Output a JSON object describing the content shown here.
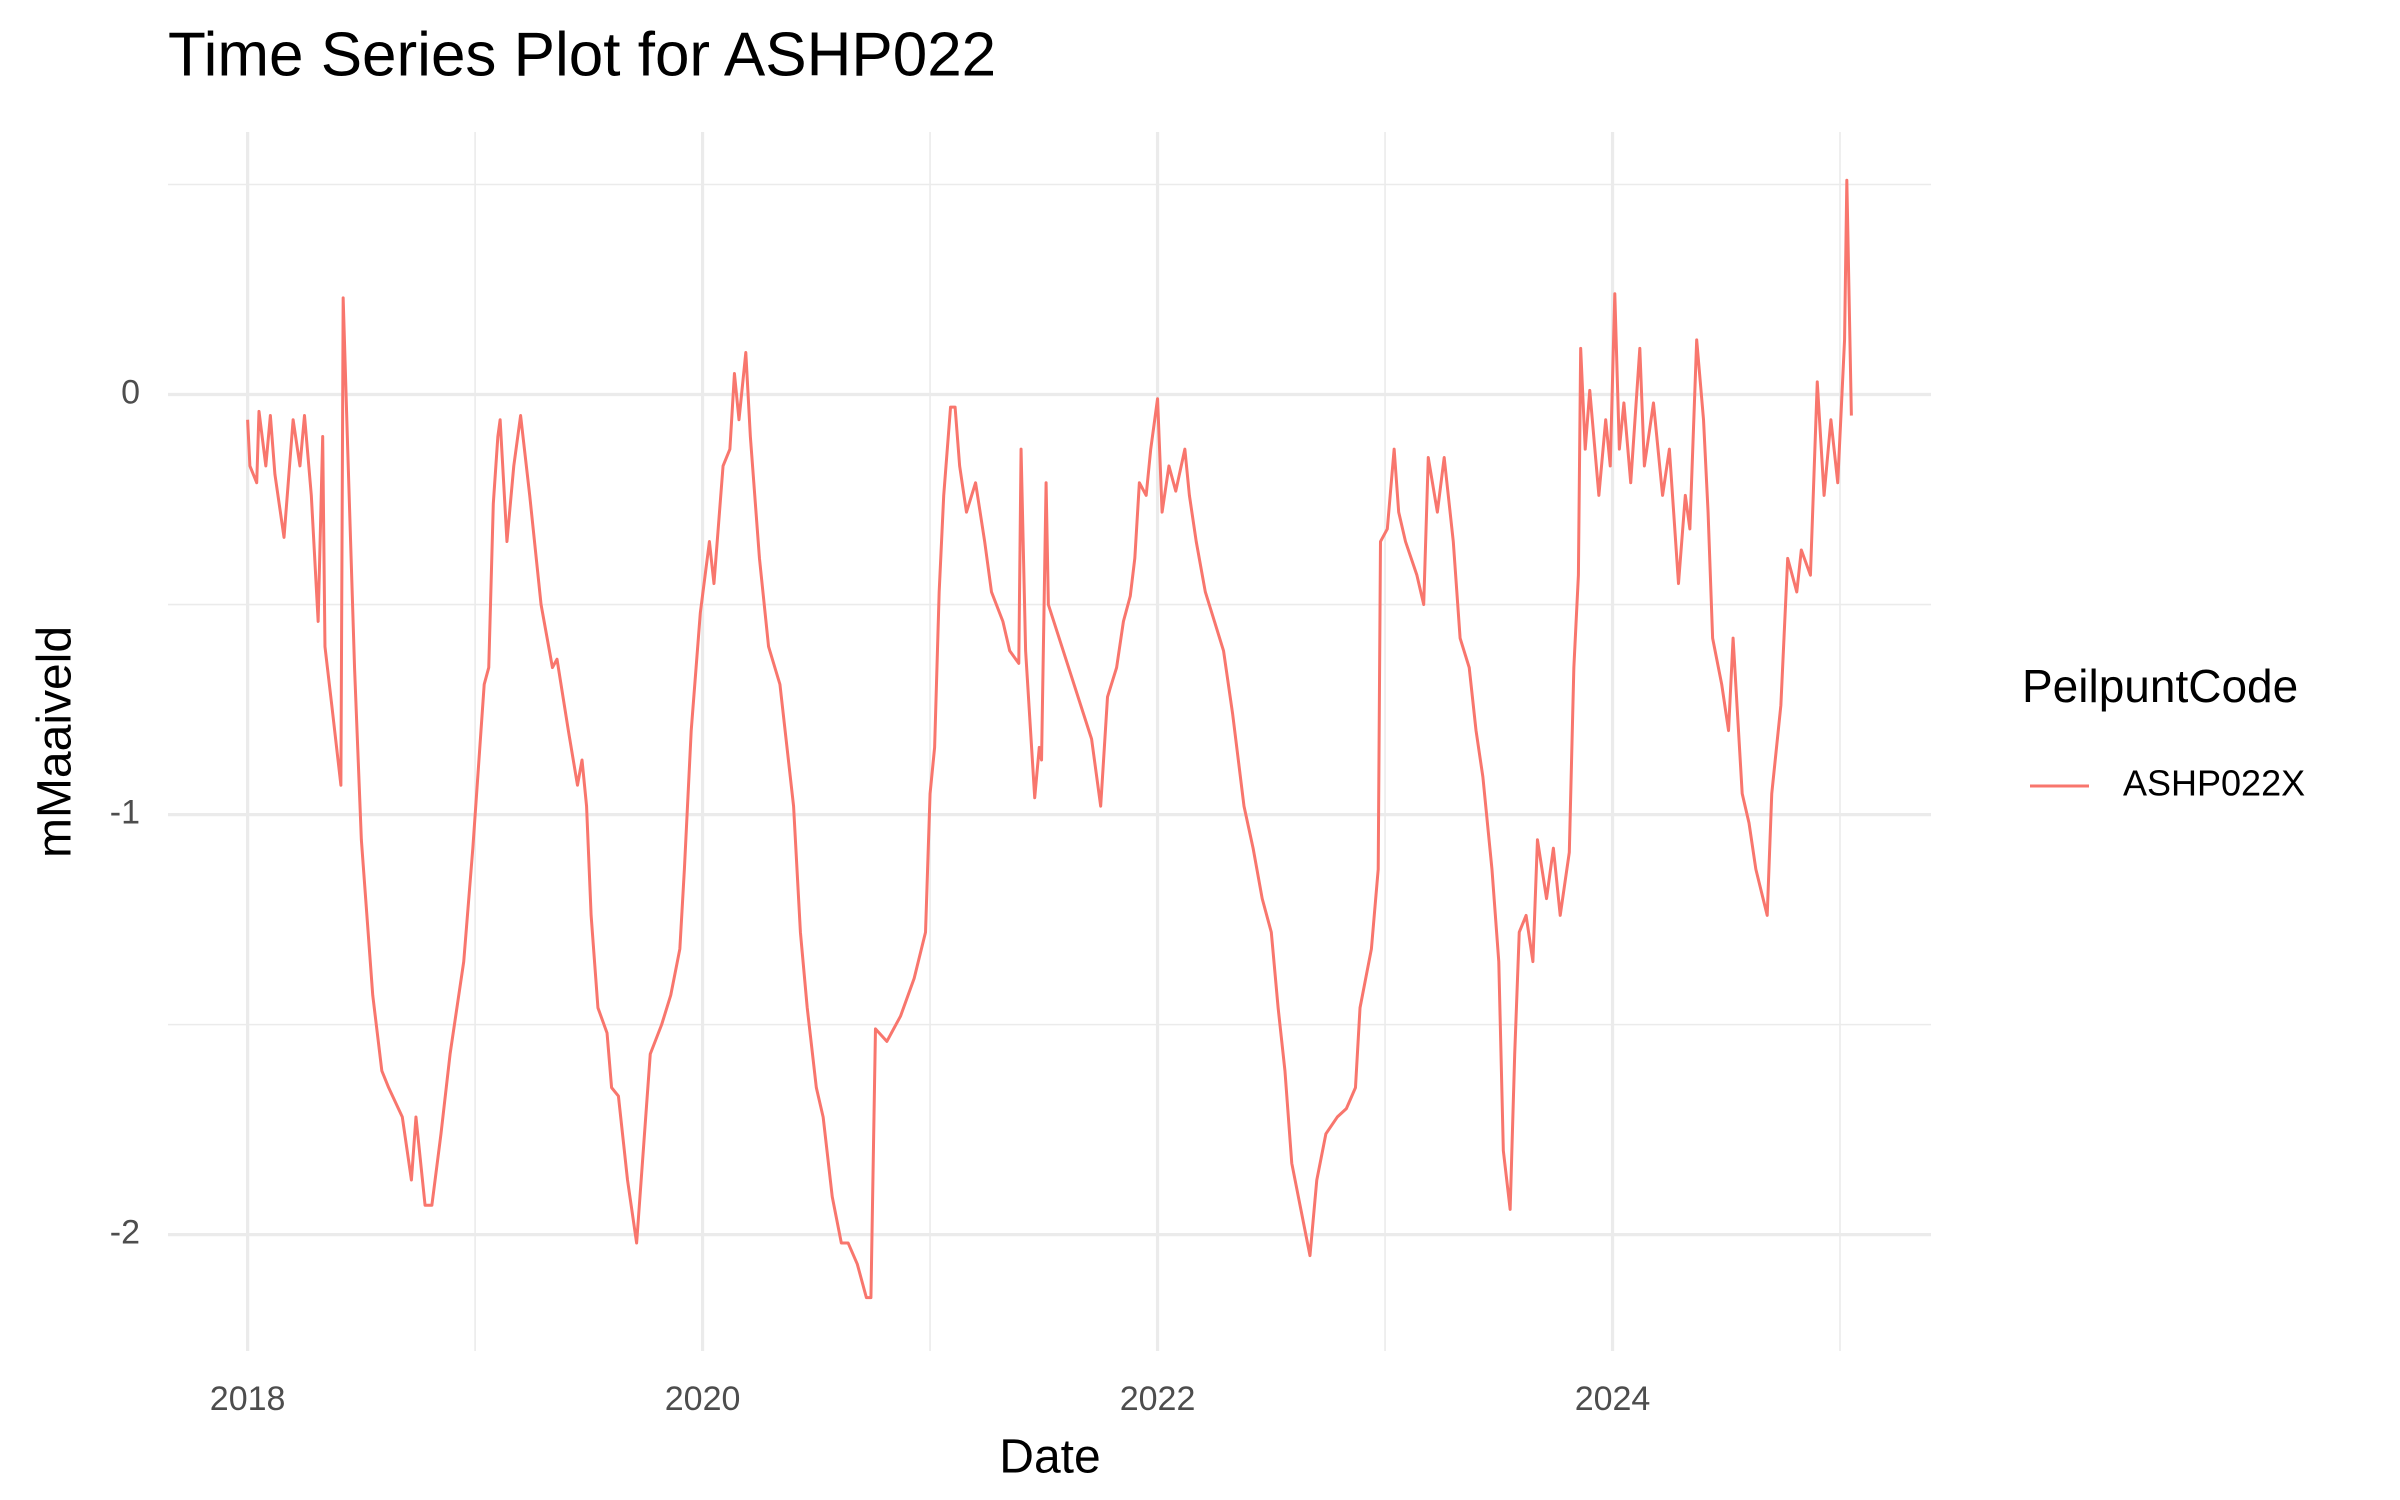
{
  "chart_data": {
    "type": "line",
    "title": "Time Series Plot for ASHP022",
    "x_label": "Date",
    "y_label": "mMaaiveld",
    "legend_title": "PeilpuntCode",
    "x": [
      2018.0,
      2018.01,
      2018.04,
      2018.05,
      2018.08,
      2018.1,
      2018.12,
      2018.16,
      2018.2,
      2018.23,
      2018.25,
      2018.28,
      2018.31,
      2018.33,
      2018.34,
      2018.37,
      2018.41,
      2018.42,
      2018.44,
      2018.47,
      2018.5,
      2018.55,
      2018.59,
      2018.62,
      2018.68,
      2018.72,
      2018.74,
      2018.78,
      2018.81,
      2018.85,
      2018.89,
      2018.95,
      2018.99,
      2019.04,
      2019.06,
      2019.08,
      2019.1,
      2019.11,
      2019.14,
      2019.17,
      2019.2,
      2019.24,
      2019.29,
      2019.34,
      2019.36,
      2019.41,
      2019.45,
      2019.47,
      2019.49,
      2019.51,
      2019.54,
      2019.58,
      2019.6,
      2019.63,
      2019.67,
      2019.71,
      2019.75,
      2019.77,
      2019.82,
      2019.86,
      2019.9,
      2019.92,
      2019.95,
      2019.99,
      2020.03,
      2020.05,
      2020.09,
      2020.12,
      2020.14,
      2020.16,
      2020.19,
      2020.21,
      2020.25,
      2020.29,
      2020.34,
      2020.4,
      2020.43,
      2020.46,
      2020.5,
      2020.53,
      2020.57,
      2020.61,
      2020.64,
      2020.68,
      2020.72,
      2020.74,
      2020.76,
      2020.81,
      2020.87,
      2020.93,
      2020.98,
      2021.0,
      2021.02,
      2021.04,
      2021.06,
      2021.09,
      2021.11,
      2021.13,
      2021.16,
      2021.2,
      2021.24,
      2021.27,
      2021.32,
      2021.35,
      2021.39,
      2021.4,
      2021.42,
      2021.46,
      2021.48,
      2021.49,
      2021.51,
      2021.52,
      2021.71,
      2021.75,
      2021.78,
      2021.82,
      2021.85,
      2021.88,
      2021.9,
      2021.92,
      2021.95,
      2021.97,
      2022.0,
      2022.02,
      2022.05,
      2022.08,
      2022.12,
      2022.14,
      2022.17,
      2022.21,
      2022.25,
      2022.29,
      2022.33,
      2022.38,
      2022.42,
      2022.46,
      2022.5,
      2022.53,
      2022.56,
      2022.59,
      2022.63,
      2022.67,
      2022.7,
      2022.74,
      2022.79,
      2022.83,
      2022.87,
      2022.89,
      2022.94,
      2022.97,
      2022.98,
      2023.01,
      2023.04,
      2023.06,
      2023.09,
      2023.14,
      2023.17,
      2023.19,
      2023.23,
      2023.26,
      2023.3,
      2023.33,
      2023.37,
      2023.4,
      2023.43,
      2023.47,
      2023.5,
      2023.52,
      2023.55,
      2023.57,
      2023.59,
      2023.62,
      2023.65,
      2023.67,
      2023.71,
      2023.74,
      2023.77,
      2023.81,
      2023.83,
      2023.85,
      2023.86,
      2023.88,
      2023.9,
      2023.94,
      2023.97,
      2023.99,
      2024.01,
      2024.03,
      2024.05,
      2024.08,
      2024.12,
      2024.14,
      2024.18,
      2024.22,
      2024.25,
      2024.29,
      2024.32,
      2024.34,
      2024.37,
      2024.4,
      2024.42,
      2024.44,
      2024.48,
      2024.51,
      2024.53,
      2024.57,
      2024.6,
      2024.63,
      2024.68,
      2024.7,
      2024.74,
      2024.77,
      2024.81,
      2024.83,
      2024.87,
      2024.9,
      2024.93,
      2024.96,
      2024.99,
      2025.02,
      2025.03,
      2025.05
    ],
    "series": [
      {
        "name": "ASHP022X",
        "color": "#f8766d",
        "values": [
          -0.06,
          -0.17,
          -0.21,
          -0.04,
          -0.17,
          -0.05,
          -0.19,
          -0.34,
          -0.06,
          -0.17,
          -0.05,
          -0.24,
          -0.54,
          -0.1,
          -0.6,
          -0.74,
          -0.93,
          0.23,
          -0.13,
          -0.65,
          -1.06,
          -1.43,
          -1.61,
          -1.65,
          -1.72,
          -1.87,
          -1.72,
          -1.93,
          -1.93,
          -1.76,
          -1.57,
          -1.35,
          -1.08,
          -0.69,
          -0.65,
          -0.26,
          -0.1,
          -0.06,
          -0.35,
          -0.17,
          -0.05,
          -0.24,
          -0.5,
          -0.65,
          -0.63,
          -0.8,
          -0.93,
          -0.87,
          -0.98,
          -1.24,
          -1.46,
          -1.52,
          -1.65,
          -1.67,
          -1.87,
          -2.02,
          -1.72,
          -1.57,
          -1.5,
          -1.43,
          -1.32,
          -1.13,
          -0.8,
          -0.52,
          -0.35,
          -0.45,
          -0.17,
          -0.13,
          0.05,
          -0.06,
          0.1,
          -0.1,
          -0.39,
          -0.6,
          -0.69,
          -0.98,
          -1.28,
          -1.46,
          -1.65,
          -1.72,
          -1.91,
          -2.02,
          -2.02,
          -2.07,
          -2.15,
          -2.15,
          -1.51,
          -1.54,
          -1.48,
          -1.39,
          -1.28,
          -0.95,
          -0.84,
          -0.47,
          -0.24,
          -0.03,
          -0.03,
          -0.17,
          -0.28,
          -0.21,
          -0.35,
          -0.47,
          -0.54,
          -0.61,
          -0.64,
          -0.13,
          -0.61,
          -0.96,
          -0.84,
          -0.87,
          -0.21,
          -0.5,
          -0.82,
          -0.98,
          -0.72,
          -0.65,
          -0.54,
          -0.48,
          -0.39,
          -0.21,
          -0.24,
          -0.13,
          -0.01,
          -0.28,
          -0.17,
          -0.23,
          -0.13,
          -0.24,
          -0.35,
          -0.47,
          -0.54,
          -0.61,
          -0.76,
          -0.98,
          -1.08,
          -1.2,
          -1.28,
          -1.46,
          -1.61,
          -1.83,
          -1.94,
          -2.05,
          -1.87,
          -1.76,
          -1.72,
          -1.7,
          -1.65,
          -1.46,
          -1.32,
          -1.13,
          -0.35,
          -0.32,
          -0.13,
          -0.28,
          -0.35,
          -0.43,
          -0.5,
          -0.15,
          -0.28,
          -0.15,
          -0.35,
          -0.58,
          -0.65,
          -0.8,
          -0.91,
          -1.13,
          -1.35,
          -1.8,
          -1.94,
          -1.57,
          -1.28,
          -1.24,
          -1.35,
          -1.06,
          -1.2,
          -1.08,
          -1.24,
          -1.09,
          -0.65,
          -0.43,
          0.11,
          -0.13,
          0.01,
          -0.24,
          -0.06,
          -0.17,
          0.24,
          -0.13,
          -0.02,
          -0.21,
          0.11,
          -0.17,
          -0.02,
          -0.24,
          -0.13,
          -0.45,
          -0.24,
          -0.32,
          0.13,
          -0.06,
          -0.28,
          -0.58,
          -0.69,
          -0.8,
          -0.58,
          -0.95,
          -1.02,
          -1.13,
          -1.24,
          -0.95,
          -0.74,
          -0.39,
          -0.47,
          -0.37,
          -0.43,
          0.03,
          -0.24,
          -0.06,
          -0.21,
          0.13,
          0.51,
          -0.05
        ]
      }
    ],
    "xlim": [
      2017.65,
      2025.4
    ],
    "xticks": [
      2018,
      2020,
      2022,
      2024
    ],
    "ylim": [
      -2.277,
      0.625
    ],
    "yticks": [
      -2,
      -1,
      0
    ],
    "grid": true
  }
}
